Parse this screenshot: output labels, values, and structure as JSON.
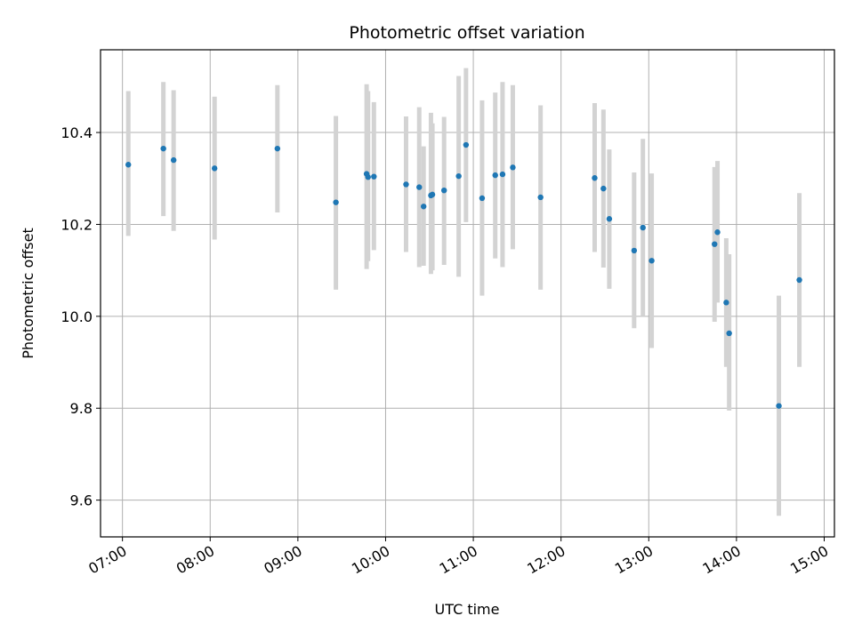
{
  "chart_data": {
    "type": "scatter",
    "title": "Photometric offset variation",
    "xlabel": "UTC time",
    "ylabel": "Photometric offset",
    "x_unit": "hours UTC",
    "xlim": [
      "06:45",
      "15:07"
    ],
    "ylim": [
      9.52,
      10.58
    ],
    "x_ticks": [
      "07:00",
      "08:00",
      "09:00",
      "10:00",
      "11:00",
      "12:00",
      "13:00",
      "14:00",
      "15:00"
    ],
    "y_ticks": [
      "9.6",
      "9.8",
      "10.0",
      "10.2",
      "10.4"
    ],
    "grid": true,
    "point_color": "#1f77b4",
    "errorbar_color": "#d3d3d3",
    "points": [
      {
        "time": "07:04",
        "value": 10.33,
        "low": 10.175,
        "high": 10.49
      },
      {
        "time": "07:28",
        "value": 10.365,
        "low": 10.218,
        "high": 10.51
      },
      {
        "time": "07:35",
        "value": 10.34,
        "low": 10.186,
        "high": 10.492
      },
      {
        "time": "08:03",
        "value": 10.322,
        "low": 10.167,
        "high": 10.478
      },
      {
        "time": "08:46",
        "value": 10.365,
        "low": 10.226,
        "high": 10.503
      },
      {
        "time": "09:26",
        "value": 10.248,
        "low": 10.058,
        "high": 10.436
      },
      {
        "time": "09:47",
        "value": 10.31,
        "low": 10.103,
        "high": 10.505
      },
      {
        "time": "09:48",
        "value": 10.303,
        "low": 10.12,
        "high": 10.49
      },
      {
        "time": "09:52",
        "value": 10.304,
        "low": 10.144,
        "high": 10.466
      },
      {
        "time": "10:14",
        "value": 10.287,
        "low": 10.14,
        "high": 10.435
      },
      {
        "time": "10:23",
        "value": 10.281,
        "low": 10.107,
        "high": 10.455
      },
      {
        "time": "10:26",
        "value": 10.239,
        "low": 10.11,
        "high": 10.37
      },
      {
        "time": "10:31",
        "value": 10.263,
        "low": 10.092,
        "high": 10.443
      },
      {
        "time": "10:32",
        "value": 10.265,
        "low": 10.1,
        "high": 10.42
      },
      {
        "time": "10:40",
        "value": 10.274,
        "low": 10.112,
        "high": 10.434
      },
      {
        "time": "10:50",
        "value": 10.305,
        "low": 10.086,
        "high": 10.523
      },
      {
        "time": "10:55",
        "value": 10.373,
        "low": 10.205,
        "high": 10.54
      },
      {
        "time": "11:06",
        "value": 10.257,
        "low": 10.045,
        "high": 10.47
      },
      {
        "time": "11:15",
        "value": 10.307,
        "low": 10.126,
        "high": 10.487
      },
      {
        "time": "11:20",
        "value": 10.309,
        "low": 10.107,
        "high": 10.51
      },
      {
        "time": "11:27",
        "value": 10.324,
        "low": 10.146,
        "high": 10.503
      },
      {
        "time": "11:46",
        "value": 10.259,
        "low": 10.058,
        "high": 10.459
      },
      {
        "time": "12:23",
        "value": 10.301,
        "low": 10.14,
        "high": 10.464
      },
      {
        "time": "12:29",
        "value": 10.278,
        "low": 10.106,
        "high": 10.45
      },
      {
        "time": "12:33",
        "value": 10.212,
        "low": 10.06,
        "high": 10.363
      },
      {
        "time": "12:50",
        "value": 10.143,
        "low": 9.974,
        "high": 10.313
      },
      {
        "time": "12:56",
        "value": 10.193,
        "low": 10.0,
        "high": 10.386
      },
      {
        "time": "13:02",
        "value": 10.121,
        "low": 9.931,
        "high": 10.311
      },
      {
        "time": "13:45",
        "value": 10.157,
        "low": 9.988,
        "high": 10.325
      },
      {
        "time": "13:47",
        "value": 10.183,
        "low": 10.03,
        "high": 10.338
      },
      {
        "time": "13:53",
        "value": 10.03,
        "low": 9.89,
        "high": 10.17
      },
      {
        "time": "13:55",
        "value": 9.963,
        "low": 9.795,
        "high": 10.135
      },
      {
        "time": "14:29",
        "value": 9.805,
        "low": 9.566,
        "high": 10.045
      },
      {
        "time": "14:43",
        "value": 10.079,
        "low": 9.89,
        "high": 10.268
      }
    ]
  }
}
